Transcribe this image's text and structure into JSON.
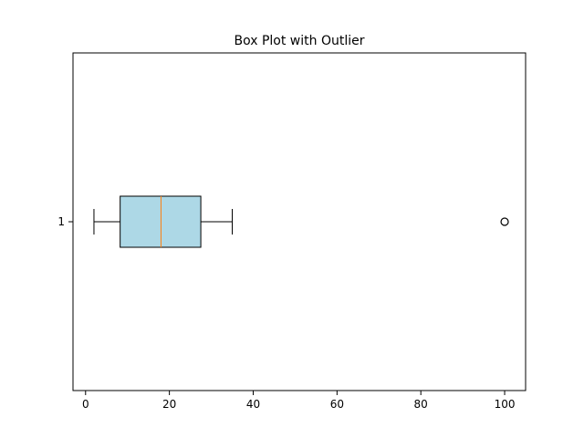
{
  "chart_data": {
    "type": "boxplot",
    "title": "Box Plot with Outlier",
    "orientation": "horizontal",
    "xlabel": "",
    "ylabel": "",
    "xlim": [
      -3,
      105
    ],
    "x_ticks": [
      0,
      20,
      40,
      60,
      80,
      100
    ],
    "grid": false,
    "categories": [
      "1"
    ],
    "boxes": [
      {
        "category": "1",
        "whisker_low": 2,
        "q1": 8.25,
        "median": 18,
        "q3": 27.5,
        "whisker_high": 35,
        "outliers": [
          100
        ]
      }
    ],
    "colors": {
      "box_fill": "#add8e6",
      "median_line": "#ff7f0e",
      "edge": "#000000"
    }
  }
}
